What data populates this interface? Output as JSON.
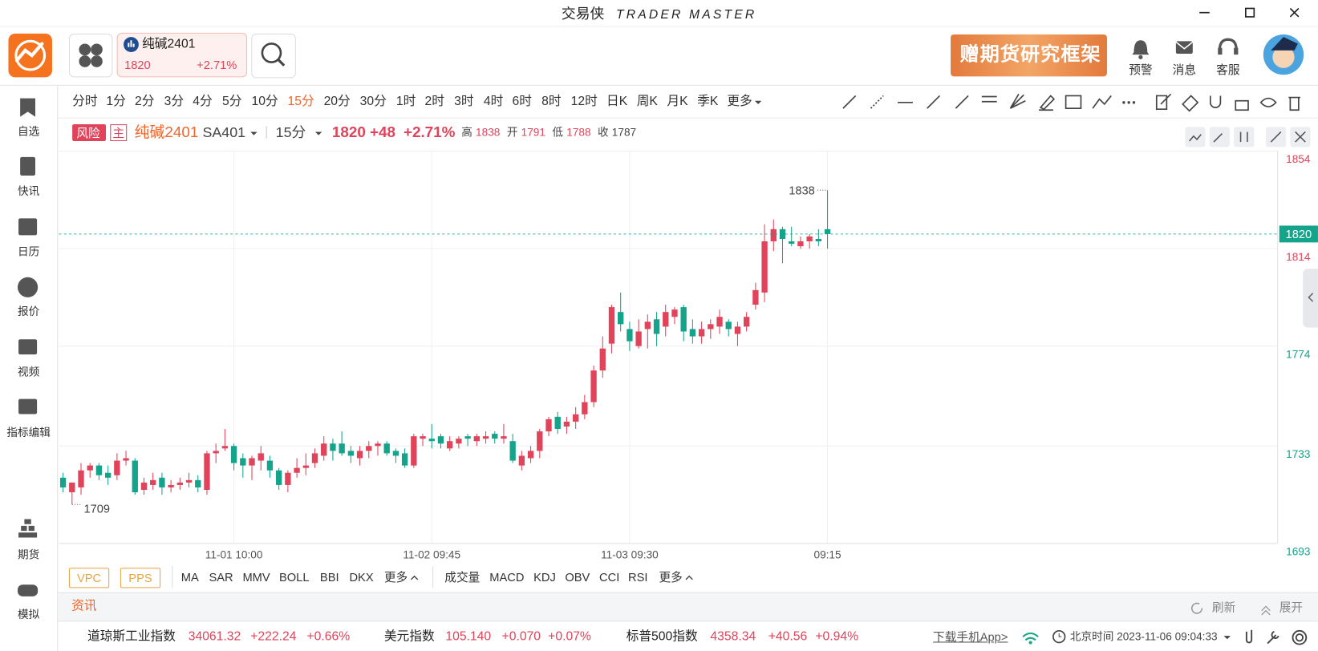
{
  "window": {
    "title": "交易侠",
    "subtitle": "TRADER MASTER"
  },
  "header": {
    "instrument": {
      "name": "纯碱2401",
      "price": "1820",
      "change": "+2.71%"
    },
    "banner": "赠期货研究框架",
    "actions": [
      "预警",
      "消息",
      "客服"
    ]
  },
  "sidebar": [
    "自选",
    "快讯",
    "日历",
    "报价",
    "视频",
    "指标编辑",
    "期货",
    "模拟"
  ],
  "periods": [
    "分时",
    "1分",
    "2分",
    "3分",
    "4分",
    "5分",
    "10分",
    "15分",
    "20分",
    "30分",
    "1时",
    "2时",
    "3时",
    "4时",
    "6时",
    "8时",
    "12时",
    "日K",
    "周K",
    "月K",
    "季K",
    "更多"
  ],
  "quote_bar": {
    "risk": "风险",
    "main": "主",
    "name": "纯碱2401",
    "code": "SA401",
    "period": "15分",
    "last": "1820",
    "change": "+48",
    "pct": "+2.71%",
    "high_label": "高",
    "high": "1838",
    "open_label": "开",
    "open": "1791",
    "low_label": "低",
    "low": "1788",
    "close_label": "收"
  },
  "indicators": {
    "buttons": [
      "VPC",
      "PPS"
    ],
    "main": [
      "MA",
      "SAR",
      "MMV",
      "BOLL",
      "BBI",
      "DKX"
    ],
    "main_more": "更多",
    "sub": [
      "成交量",
      "MACD",
      "KDJ",
      "OBV",
      "CCI",
      "RSI"
    ],
    "sub_more": "更多"
  },
  "news_bar": {
    "title": "资讯",
    "refresh": "刷新",
    "expand": "展开"
  },
  "ticker": [
    {
      "name": "道琼斯工业指数",
      "value": "34061.32",
      "change": "+222.24",
      "pct": "+0.66%"
    },
    {
      "name": "美元指数",
      "value": "105.140",
      "change": "+0.070",
      "pct": "+0.07%"
    },
    {
      "name": "标普500指数",
      "value": "4358.34",
      "change": "+40.56",
      "pct": "+0.94%"
    }
  ],
  "status": {
    "download": "下载手机App>",
    "clock": "北京时间 2023-11-06 09:04:33"
  },
  "chart_data": {
    "type": "candlestick",
    "up_color": "#e0435a",
    "down_color": "#14a38b",
    "prev_close": 1787,
    "ylim": [
      1693,
      1854
    ],
    "yticks": [
      1854,
      1814,
      1774,
      1733,
      1693
    ],
    "grid": true,
    "categories": [
      null,
      null,
      null,
      null,
      null,
      null,
      null,
      null,
      null,
      null,
      null,
      null,
      null,
      null,
      null,
      null,
      null,
      null,
      null,
      "11-01 10:00",
      null,
      null,
      null,
      null,
      null,
      null,
      null,
      null,
      null,
      null,
      null,
      null,
      null,
      null,
      null,
      null,
      null,
      null,
      null,
      null,
      null,
      "11-02 09:45",
      null,
      null,
      null,
      null,
      null,
      null,
      null,
      null,
      null,
      null,
      null,
      null,
      null,
      null,
      null,
      null,
      null,
      null,
      null,
      null,
      null,
      "11-03 09:30",
      null,
      null,
      null,
      null,
      null,
      null,
      null,
      null,
      null,
      null,
      null,
      null,
      null,
      null,
      null,
      null,
      null,
      null,
      null,
      null,
      null,
      "09:15"
    ],
    "open": [
      1720,
      1714,
      1716,
      1723,
      1725,
      1722,
      1721,
      1727,
      1727,
      1715,
      1717,
      1720,
      1716,
      1717,
      1718,
      1719,
      1715,
      1730,
      1732,
      1733,
      1728,
      1725,
      1727,
      1727,
      1723,
      1717,
      1722,
      1724,
      1726,
      1729,
      1734,
      1734,
      1731,
      1728,
      1731,
      1733,
      1734,
      1731,
      1730,
      1725,
      1736,
      1736,
      1737,
      1732,
      1734,
      1737,
      1735,
      1736,
      1738,
      1736,
      1735,
      1725,
      1728,
      1731,
      1739,
      1745,
      1741,
      1743,
      1746,
      1751,
      1764,
      1775,
      1788,
      1781,
      1774,
      1781,
      1785,
      1782,
      1786,
      1790,
      1781,
      1778,
      1781,
      1782,
      1784,
      1779,
      1782,
      1791,
      1796,
      1817,
      1822,
      1817,
      1815,
      1817,
      1818,
      1822
    ],
    "high": [
      1722,
      1718,
      1726,
      1726,
      1726,
      1725,
      1730,
      1731,
      1728,
      1720,
      1722,
      1722,
      1719,
      1720,
      1722,
      1721,
      1731,
      1734,
      1740,
      1734,
      1730,
      1729,
      1733,
      1729,
      1724,
      1723,
      1728,
      1730,
      1732,
      1737,
      1736,
      1739,
      1733,
      1733,
      1735,
      1735,
      1735,
      1732,
      1732,
      1738,
      1738,
      1742,
      1738,
      1737,
      1737,
      1738,
      1738,
      1739,
      1739,
      1742,
      1738,
      1731,
      1733,
      1740,
      1745,
      1747,
      1745,
      1749,
      1754,
      1766,
      1778,
      1791,
      1796,
      1784,
      1785,
      1787,
      1788,
      1791,
      1790,
      1791,
      1785,
      1784,
      1785,
      1789,
      1785,
      1784,
      1788,
      1800,
      1824,
      1826,
      1823,
      1823,
      1819,
      1820,
      1822,
      1838
    ],
    "low": [
      1714,
      1709,
      1713,
      1720,
      1719,
      1717,
      1719,
      1725,
      1713,
      1713,
      1715,
      1713,
      1714,
      1715,
      1716,
      1714,
      1713,
      1726,
      1731,
      1723,
      1720,
      1719,
      1723,
      1720,
      1715,
      1714,
      1720,
      1721,
      1724,
      1727,
      1727,
      1729,
      1726,
      1725,
      1728,
      1729,
      1729,
      1726,
      1724,
      1724,
      1733,
      1732,
      1732,
      1731,
      1732,
      1733,
      1733,
      1734,
      1734,
      1734,
      1726,
      1723,
      1726,
      1728,
      1737,
      1738,
      1738,
      1740,
      1744,
      1749,
      1761,
      1771,
      1780,
      1772,
      1773,
      1773,
      1774,
      1778,
      1783,
      1776,
      1775,
      1775,
      1777,
      1779,
      1778,
      1774,
      1780,
      1789,
      1792,
      1813,
      1808,
      1815,
      1814,
      1814,
      1815,
      1814
    ],
    "close": [
      1716,
      1718,
      1723,
      1725,
      1721,
      1720,
      1727,
      1728,
      1714,
      1718,
      1719,
      1716,
      1717,
      1718,
      1719,
      1716,
      1730,
      1731,
      1733,
      1726,
      1725,
      1728,
      1730,
      1723,
      1717,
      1722,
      1724,
      1725,
      1730,
      1734,
      1731,
      1730,
      1729,
      1731,
      1733,
      1734,
      1730,
      1729,
      1725,
      1737,
      1737,
      1735,
      1734,
      1735,
      1736,
      1736,
      1737,
      1737,
      1736,
      1737,
      1727,
      1729,
      1731,
      1739,
      1744,
      1740,
      1743,
      1746,
      1751,
      1764,
      1773,
      1790,
      1783,
      1776,
      1780,
      1784,
      1779,
      1788,
      1789,
      1780,
      1778,
      1781,
      1783,
      1786,
      1781,
      1782,
      1786,
      1797,
      1817,
      1822,
      1818,
      1816,
      1817,
      1819,
      1817,
      1820
    ]
  }
}
